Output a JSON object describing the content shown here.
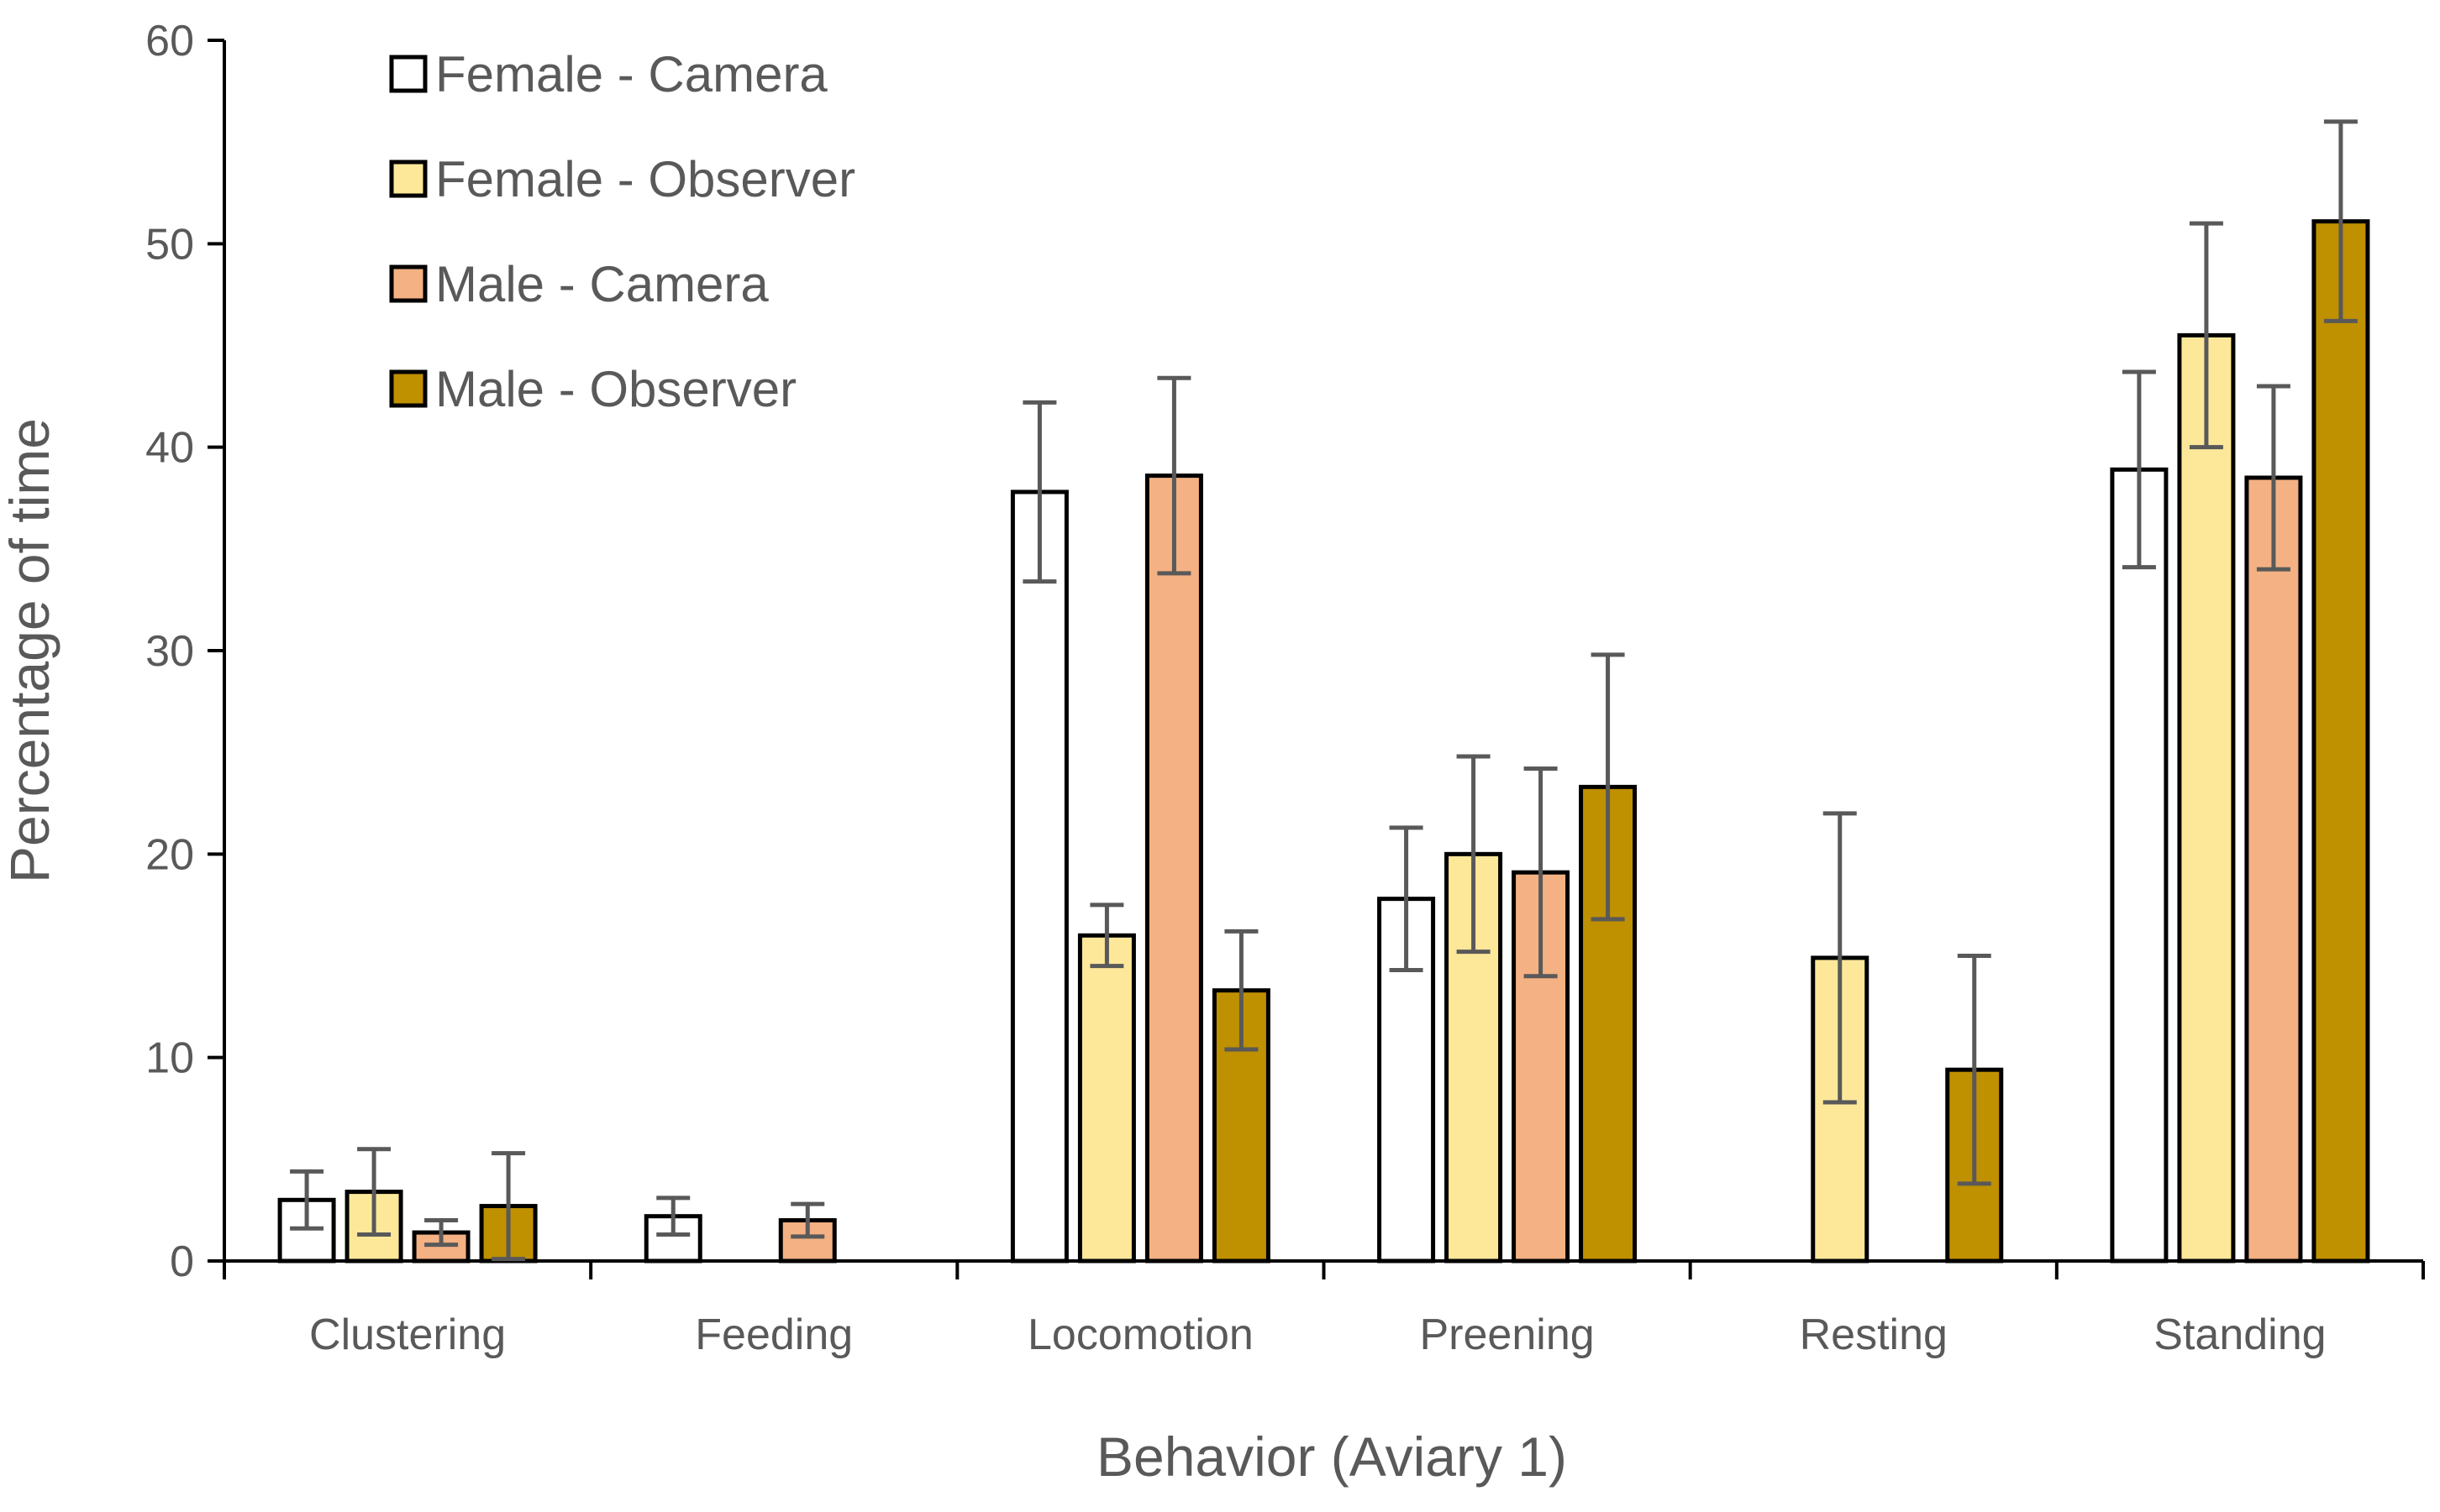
{
  "chart_data": {
    "type": "bar",
    "title": "",
    "xlabel": "Behavior (Aviary 1)",
    "ylabel": "Percentage of time",
    "ylim": [
      0,
      60
    ],
    "yticks": [
      "0",
      "10",
      "20",
      "30",
      "40",
      "50",
      "60"
    ],
    "grid": false,
    "legend_position": "top-left",
    "categories": [
      "Clustering",
      "Feeding",
      "Locomotion",
      "Preening",
      "Resting",
      "Standing"
    ],
    "series": [
      {
        "name": "Female - Camera",
        "color": "#ffffff",
        "values": [
          3.0,
          2.2,
          37.8,
          17.8,
          null,
          38.9
        ],
        "error": [
          1.4,
          0.9,
          4.4,
          3.5,
          null,
          4.8
        ]
      },
      {
        "name": "Female - Observer",
        "color": "#fde89a",
        "values": [
          3.4,
          null,
          16.0,
          20.0,
          14.9,
          45.5
        ],
        "error": [
          2.1,
          null,
          1.5,
          4.8,
          7.1,
          5.5
        ]
      },
      {
        "name": "Male - Camera",
        "color": "#f4b183",
        "values": [
          1.4,
          2.0,
          38.6,
          19.1,
          null,
          38.5
        ],
        "error": [
          0.6,
          0.8,
          4.8,
          5.1,
          null,
          4.5
        ]
      },
      {
        "name": "Male - Observer",
        "color": "#bf9000",
        "values": [
          2.7,
          null,
          13.3,
          23.3,
          9.4,
          51.1
        ],
        "error": [
          2.6,
          null,
          2.9,
          6.5,
          5.6,
          4.9
        ]
      }
    ]
  }
}
